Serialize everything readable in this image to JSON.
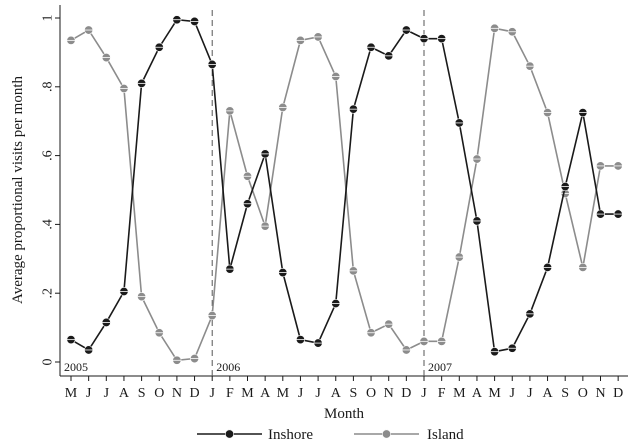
{
  "chart_data": {
    "type": "line",
    "title": "",
    "xlabel": "Month",
    "ylabel": "Average proportional visits per month",
    "ylim": [
      0,
      1
    ],
    "yticks": [
      {
        "value": 0,
        "label": "0"
      },
      {
        "value": 0.2,
        "label": ".2"
      },
      {
        "value": 0.4,
        "label": ".4"
      },
      {
        "value": 0.6,
        "label": ".6"
      },
      {
        "value": 0.8,
        "label": ".8"
      },
      {
        "value": 1,
        "label": "1"
      }
    ],
    "categories": [
      "M",
      "J",
      "J",
      "A",
      "S",
      "O",
      "N",
      "D",
      "J",
      "F",
      "M",
      "A",
      "M",
      "J",
      "J",
      "A",
      "S",
      "O",
      "N",
      "D",
      "J",
      "F",
      "M",
      "A",
      "M",
      "J",
      "J",
      "A",
      "S",
      "O",
      "N",
      "D"
    ],
    "year_markers": [
      {
        "index": 0,
        "label": "2005",
        "line": false
      },
      {
        "index": 8,
        "label": "2006",
        "line": true
      },
      {
        "index": 20,
        "label": "2007",
        "line": true
      }
    ],
    "series": [
      {
        "name": "Inshore",
        "color": "#1a1a1a",
        "values": [
          0.065,
          0.035,
          0.115,
          0.205,
          0.81,
          0.915,
          0.995,
          0.99,
          0.865,
          0.27,
          0.46,
          0.605,
          0.26,
          0.065,
          0.055,
          0.17,
          0.735,
          0.915,
          0.89,
          0.965,
          0.94,
          0.94,
          0.695,
          0.41,
          0.03,
          0.04,
          0.14,
          0.275,
          0.51,
          0.725,
          0.43,
          0.43
        ]
      },
      {
        "name": "Island",
        "color": "#8c8c8c",
        "values": [
          0.935,
          0.965,
          0.885,
          0.795,
          0.19,
          0.085,
          0.005,
          0.01,
          0.135,
          0.73,
          0.54,
          0.395,
          0.74,
          0.935,
          0.945,
          0.83,
          0.265,
          0.085,
          0.11,
          0.035,
          0.06,
          0.06,
          0.305,
          0.59,
          0.97,
          0.96,
          0.86,
          0.725,
          0.49,
          0.275,
          0.57,
          0.57
        ]
      }
    ],
    "legend": {
      "placement": "bottom-center"
    },
    "grid": false
  }
}
